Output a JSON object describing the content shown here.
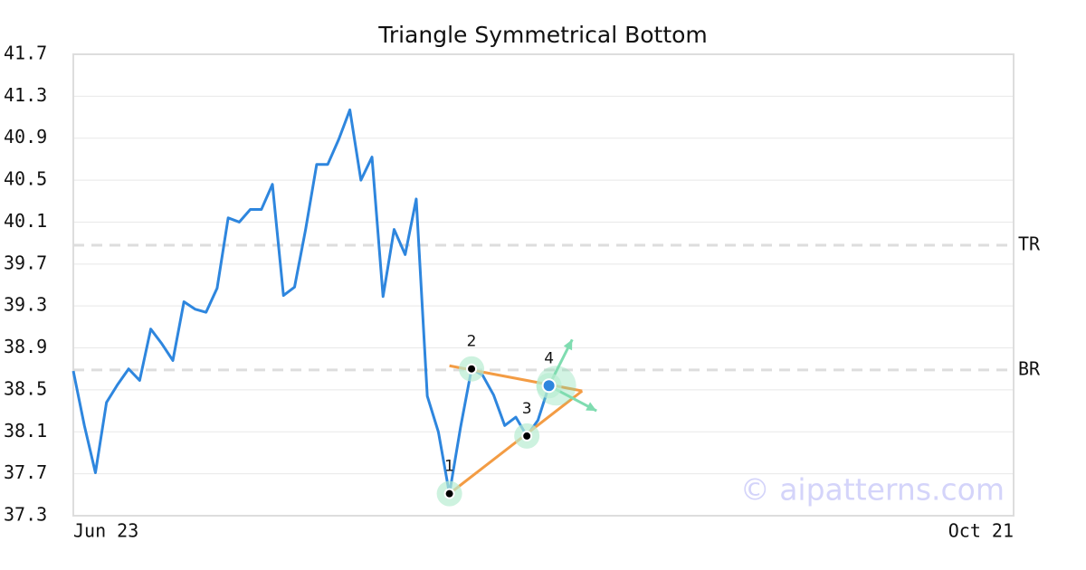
{
  "chart_data": {
    "type": "line",
    "title": "Triangle Symmetrical Bottom",
    "x": [
      0,
      1,
      2,
      3,
      4,
      5,
      6,
      7,
      8,
      9,
      10,
      11,
      12,
      13,
      14,
      15,
      16,
      17,
      18,
      19,
      20,
      21,
      22,
      23,
      24,
      25,
      26,
      27,
      28,
      29,
      30,
      31,
      32,
      33,
      34,
      35,
      36,
      37,
      38,
      39,
      40,
      41,
      42,
      43
    ],
    "series": [
      {
        "color": "#2e86de",
        "values": [
          38.68,
          38.16,
          37.71,
          38.38,
          38.55,
          38.7,
          38.59,
          39.08,
          38.94,
          38.78,
          39.34,
          39.27,
          39.24,
          39.47,
          40.14,
          40.1,
          40.22,
          40.22,
          40.46,
          39.4,
          39.48,
          40.03,
          40.65,
          40.65,
          40.89,
          41.17,
          40.5,
          40.72,
          39.39,
          40.03,
          39.79,
          40.32,
          38.44,
          38.1,
          37.51,
          38.14,
          38.7,
          38.64,
          38.45,
          38.16,
          38.24,
          38.06,
          38.21,
          38.54
        ]
      }
    ],
    "xlim": [
      0,
      85
    ],
    "xticks": [
      {
        "value": 0,
        "label": "Jun 23"
      },
      {
        "value": 85,
        "label": "Oct 21"
      }
    ],
    "ylim": [
      37.3,
      41.7
    ],
    "yticks": [
      37.3,
      37.7,
      38.1,
      38.5,
      38.9,
      39.3,
      39.7,
      40.1,
      40.5,
      40.9,
      41.3,
      41.7
    ],
    "grid": true,
    "levels": [
      {
        "label": "TR",
        "value": 39.88,
        "color": "#dddddd"
      },
      {
        "label": "BR",
        "value": 38.69,
        "color": "#dddddd"
      }
    ],
    "pattern": {
      "color": "#f39c44",
      "lines": [
        {
          "x": [
            34,
            46
          ],
          "values": [
            38.73,
            38.49
          ]
        },
        {
          "x": [
            34,
            46
          ],
          "values": [
            37.51,
            38.49
          ]
        }
      ],
      "points": [
        {
          "label": "1",
          "x": 34,
          "value": 37.51
        },
        {
          "label": "2",
          "x": 36,
          "value": 38.7
        },
        {
          "label": "3",
          "x": 41,
          "value": 38.06
        },
        {
          "label": "4",
          "x": 43,
          "value": 38.54
        }
      ],
      "arrows": {
        "color": "#7fdcb0",
        "x": [
          45.1,
          47.3
        ],
        "values": [
          38.98,
          38.3
        ]
      }
    },
    "watermark": "© aipatterns.com"
  }
}
